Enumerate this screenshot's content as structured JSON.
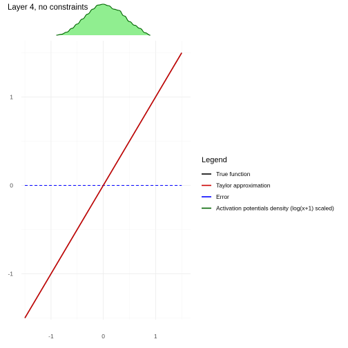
{
  "chart_data": {
    "type": "line",
    "title": "Layer 4, no constraints",
    "xlabel": "",
    "ylabel": "",
    "xlim": [
      -1.5,
      1.5
    ],
    "ylim": [
      -1.5,
      1.5
    ],
    "x_ticks": [
      -1,
      0,
      1
    ],
    "y_ticks": [
      -1,
      0,
      1
    ],
    "grid": true,
    "legend": {
      "title": "Legend",
      "placement": "right",
      "entries": [
        "True function",
        "Taylor approximation",
        "Error",
        "Activation potentials density (log(x+1) scaled)"
      ]
    },
    "series": [
      {
        "name": "True function",
        "color": "#000000",
        "style": "solid",
        "x": [
          -1.5,
          1.5
        ],
        "y": [
          -1.5,
          1.5
        ]
      },
      {
        "name": "Taylor approximation",
        "color": "#cc0000",
        "style": "solid",
        "x": [
          -1.5,
          1.5
        ],
        "y": [
          -1.5,
          1.5
        ]
      },
      {
        "name": "Error",
        "color": "#0000ff",
        "style": "dashed",
        "x": [
          -1.5,
          1.5
        ],
        "y": [
          0,
          0
        ]
      }
    ],
    "density": {
      "name": "Activation potentials density (log(x+1) scaled)",
      "line_color": "#006400",
      "fill_color": "#90ee90",
      "x": [
        -0.9,
        -0.8,
        -0.7,
        -0.6,
        -0.5,
        -0.4,
        -0.3,
        -0.2,
        -0.1,
        0.0,
        0.1,
        0.2,
        0.3,
        0.4,
        0.5,
        0.6,
        0.7,
        0.8,
        0.9
      ],
      "y": [
        0.0,
        0.03,
        0.1,
        0.22,
        0.36,
        0.52,
        0.68,
        0.84,
        0.97,
        1.0,
        0.95,
        0.84,
        0.8,
        0.62,
        0.44,
        0.32,
        0.22,
        0.08,
        0.0
      ]
    }
  }
}
